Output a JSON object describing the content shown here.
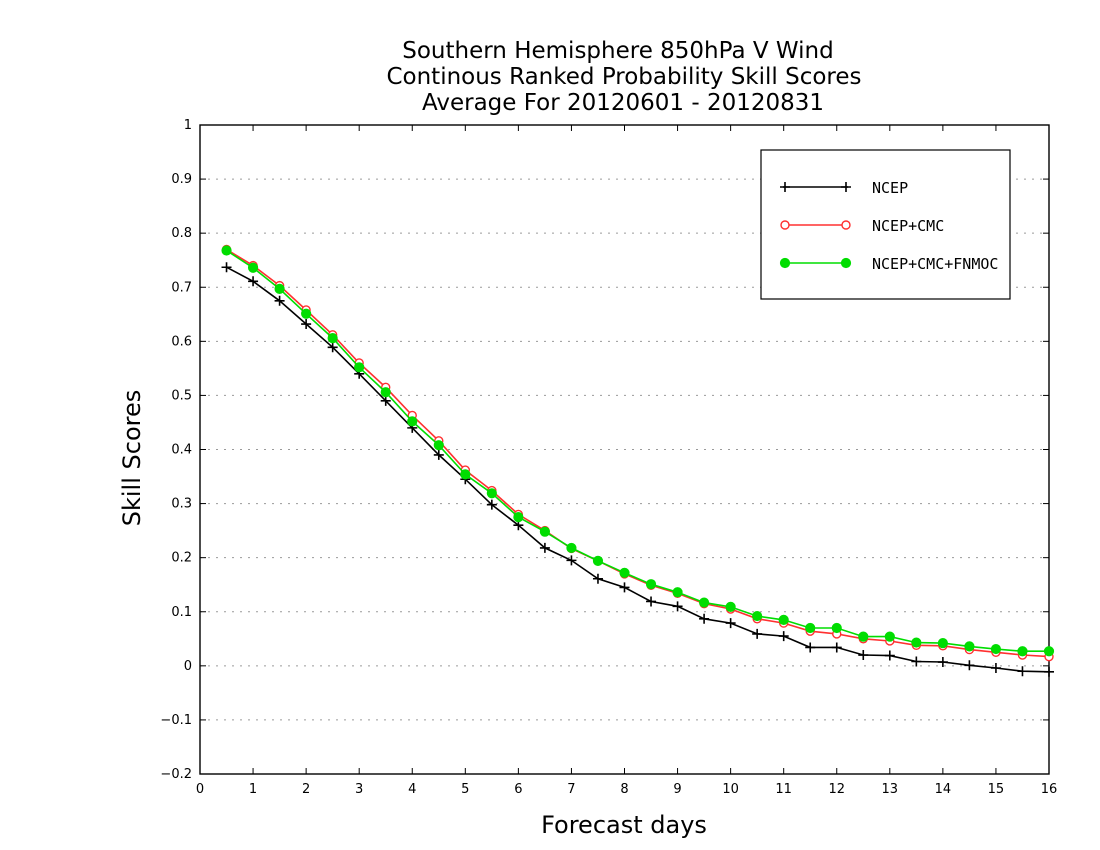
{
  "chart_data": {
    "type": "line",
    "title_lines": [
      "Southern Hemisphere 850hPa V Wind",
      "Continous Ranked Probability Skill Scores",
      "Average For 20120601 - 20120831"
    ],
    "xlabel": "Forecast days",
    "ylabel": "Skill Scores",
    "xlim": [
      0,
      16
    ],
    "ylim": [
      -0.2,
      1
    ],
    "x_ticks": [
      0,
      1,
      2,
      3,
      4,
      5,
      6,
      7,
      8,
      9,
      10,
      11,
      12,
      13,
      14,
      15,
      16
    ],
    "y_ticks": [
      -0.2,
      -0.1,
      0,
      0.1,
      0.2,
      0.3,
      0.4,
      0.5,
      0.6,
      0.7,
      0.8,
      0.9,
      1
    ],
    "y_tick_labels": [
      "−0.2",
      "−0.1",
      "0",
      "0.1",
      "0.2",
      "0.3",
      "0.4",
      "0.5",
      "0.6",
      "0.7",
      "0.8",
      "0.9",
      "1"
    ],
    "grid": true,
    "legend_position": "top-right",
    "x": [
      0.5,
      1,
      1.5,
      2,
      2.5,
      3,
      3.5,
      4,
      4.5,
      5,
      5.5,
      6,
      6.5,
      7,
      7.5,
      8,
      8.5,
      9,
      9.5,
      10,
      10.5,
      11,
      11.5,
      12,
      12.5,
      13,
      13.5,
      14,
      14.5,
      15,
      15.5,
      16
    ],
    "series": [
      {
        "name": "NCEP",
        "color": "#000000",
        "marker": "plus",
        "values": [
          0.737,
          0.711,
          0.675,
          0.632,
          0.589,
          0.54,
          0.49,
          0.44,
          0.39,
          0.345,
          0.298,
          0.26,
          0.218,
          0.195,
          0.161,
          0.145,
          0.119,
          0.11,
          0.087,
          0.079,
          0.059,
          0.055,
          0.034,
          0.034,
          0.02,
          0.019,
          0.008,
          0.007,
          0.001,
          -0.004,
          -0.01,
          -0.011
        ]
      },
      {
        "name": "NCEP+CMC",
        "color": "#ff3030",
        "marker": "open-circle",
        "values": [
          0.77,
          0.74,
          0.703,
          0.658,
          0.612,
          0.56,
          0.515,
          0.463,
          0.416,
          0.362,
          0.324,
          0.28,
          0.25,
          0.217,
          0.194,
          0.17,
          0.149,
          0.134,
          0.115,
          0.105,
          0.087,
          0.079,
          0.064,
          0.059,
          0.05,
          0.046,
          0.038,
          0.037,
          0.03,
          0.025,
          0.02,
          0.017
        ]
      },
      {
        "name": "NCEP+CMC+FNMOC",
        "color": "#00dd00",
        "marker": "filled-circle",
        "values": [
          0.768,
          0.736,
          0.697,
          0.651,
          0.606,
          0.552,
          0.506,
          0.452,
          0.408,
          0.354,
          0.319,
          0.275,
          0.248,
          0.218,
          0.194,
          0.172,
          0.151,
          0.136,
          0.117,
          0.109,
          0.092,
          0.085,
          0.07,
          0.07,
          0.054,
          0.054,
          0.043,
          0.042,
          0.036,
          0.031,
          0.027,
          0.027
        ]
      }
    ]
  }
}
